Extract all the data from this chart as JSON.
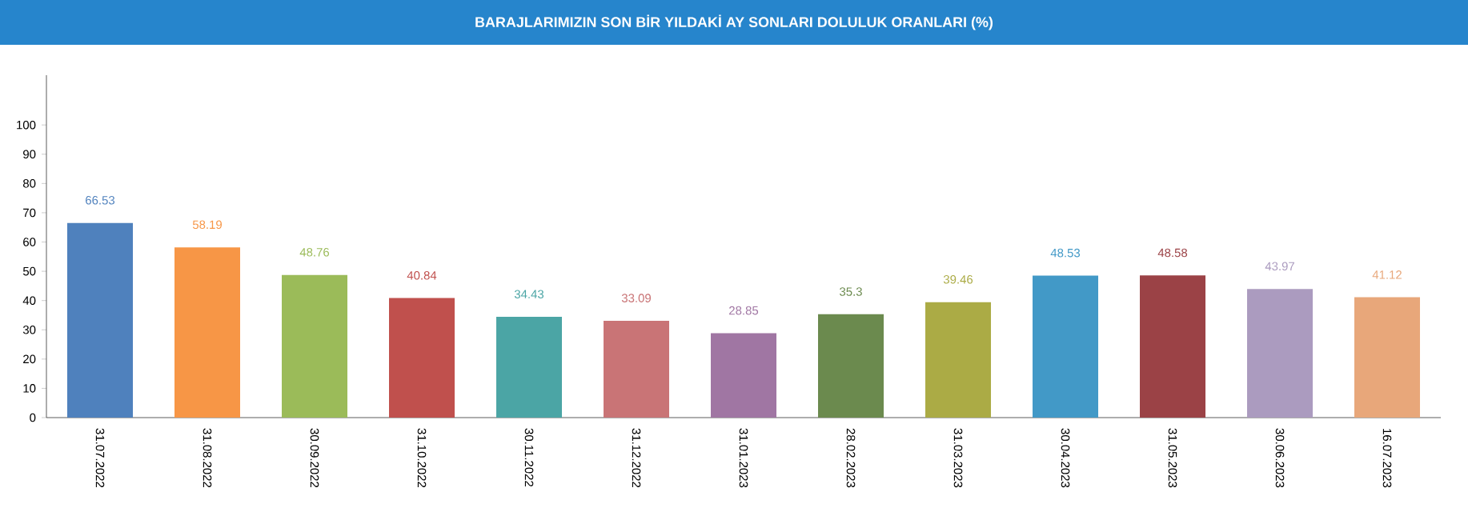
{
  "chart_data": {
    "type": "bar",
    "title": "BARAJLARIMIZIN SON BİR YILDAKİ AY SONLARI DOLULUK ORANLARI (%)",
    "categories": [
      "31.07.2022",
      "31.08.2022",
      "30.09.2022",
      "31.10.2022",
      "30.11.2022",
      "31.12.2022",
      "31.01.2023",
      "28.02.2023",
      "31.03.2023",
      "30.04.2023",
      "31.05.2023",
      "30.06.2023",
      "16.07.2023"
    ],
    "values": [
      66.53,
      58.19,
      48.76,
      40.84,
      34.43,
      33.09,
      28.85,
      35.3,
      39.46,
      48.53,
      48.58,
      43.97,
      41.12
    ],
    "colors": [
      "#4f81bd",
      "#f79646",
      "#9bbb59",
      "#c0504d",
      "#4ba5a5",
      "#c97476",
      "#a076a3",
      "#6b8a4e",
      "#abab45",
      "#4299c7",
      "#9b4246",
      "#ab9bbf",
      "#e8a77a"
    ],
    "data_labels": true,
    "ylim": [
      0,
      117
    ],
    "yticks": [
      0,
      10,
      20,
      30,
      40,
      50,
      60,
      70,
      80,
      90,
      100
    ],
    "grid": false
  }
}
